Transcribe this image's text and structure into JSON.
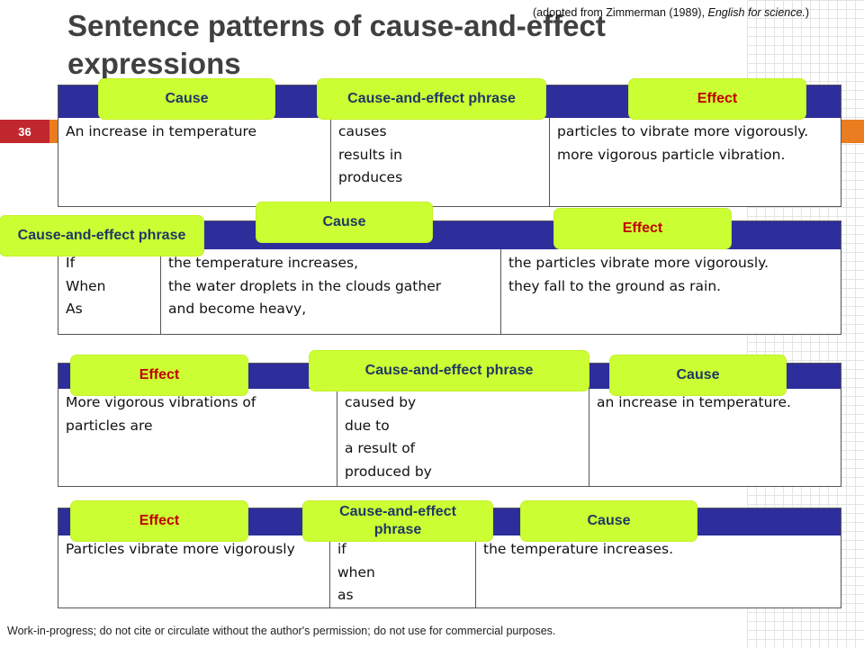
{
  "slide": {
    "title": "Sentence patterns of cause-and-effect expressions",
    "source_prefix": "(adopted from Zimmerman (1989), ",
    "source_italic": "English for science.",
    "source_suffix": ")",
    "page_number": "36",
    "footer": "Work-in-progress; do not cite or circulate without the author's permission; do not use for commercial purposes."
  },
  "colors": {
    "header_band": "#2d2d9c",
    "label_bg": "#ccff33",
    "effect_text": "#c00000",
    "cause_text": "#1f3864",
    "page_badge": "#c0282d",
    "accent_line": "#e97d1f"
  },
  "patterns": [
    {
      "labels": [
        "Cause",
        "Cause-and-effect phrase",
        "Effect"
      ],
      "columns": [
        [
          "An increase in temperature"
        ],
        [
          "causes",
          "results in",
          "produces"
        ],
        [
          "particles to vibrate more vigorously.",
          "more vigorous particle vibration."
        ]
      ]
    },
    {
      "labels": [
        "Cause-and-effect phrase",
        "Cause",
        "Effect"
      ],
      "columns": [
        [
          "If",
          "When",
          "As"
        ],
        [
          "the temperature increases,",
          "the water droplets in the clouds gather",
          "and become heavy,"
        ],
        [
          "the particles vibrate more vigorously.",
          "they fall to the ground as rain."
        ]
      ]
    },
    {
      "labels": [
        "Effect",
        "Cause-and-effect phrase",
        "Cause"
      ],
      "columns": [
        [
          "More vigorous vibrations of",
          "particles are"
        ],
        [
          "caused by",
          "due to",
          "a result of",
          "produced by"
        ],
        [
          "an increase in temperature."
        ]
      ]
    },
    {
      "labels": [
        "Effect",
        "Cause-and-effect phrase",
        "Cause"
      ],
      "columns": [
        [
          "Particles vibrate more vigorously"
        ],
        [
          "if",
          "when",
          "as"
        ],
        [
          "the temperature increases."
        ]
      ]
    }
  ]
}
